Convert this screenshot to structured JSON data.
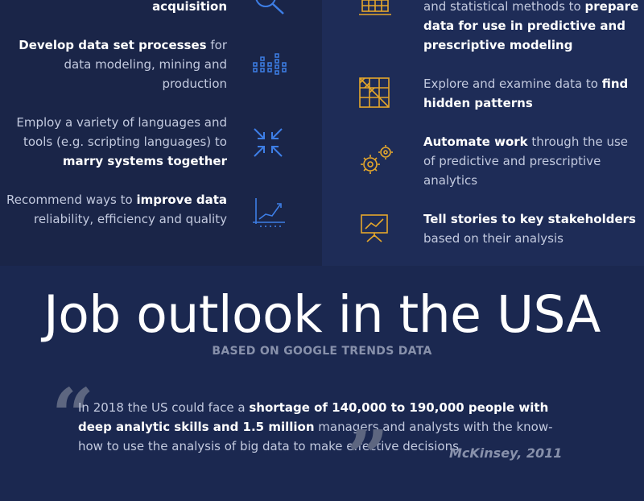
{
  "left_duties": [
    {
      "pre": "",
      "bold": "acquisition",
      "post": ""
    },
    {
      "pre": "",
      "bold": "Develop data set processes",
      "post": " for data modeling, mining and production"
    },
    {
      "pre": "Employ a variety of languages and tools (e.g. scripting languages) to ",
      "bold": "marry systems together",
      "post": ""
    },
    {
      "pre": "Recommend ways to ",
      "bold": "improve data",
      "post": " reliability, efficiency and quality"
    }
  ],
  "right_duties": [
    {
      "pre": "and statistical methods to ",
      "bold": "prepare data for use in predictive and prescriptive modeling",
      "post": ""
    },
    {
      "pre": "Explore and examine data to ",
      "bold": "find hidden patterns",
      "post": ""
    },
    {
      "pre": "",
      "bold": "Automate work",
      "post": " through the use of predictive and prescriptive analytics"
    },
    {
      "pre": "",
      "bold": "Tell stories to key stakeholders",
      "post": " based on their analysis"
    }
  ],
  "icons": {
    "left": [
      "magnifier-icon",
      "bar-dots-icon",
      "arrows-inward-icon",
      "trend-chart-icon"
    ],
    "right": [
      "grid-chart-icon",
      "grid-diagonal-icon",
      "gears-icon",
      "presentation-board-icon"
    ],
    "colors": {
      "left": "#3d7ee6",
      "right": "#e5a72b"
    }
  },
  "outlook": {
    "title": "Job outlook in the USA",
    "subtitle": "BASED ON GOOGLE TRENDS DATA",
    "quote_open_mark": "“",
    "quote_close_mark": "”",
    "quote_pre": "In 2018 the US could face a ",
    "quote_bold": "shortage of 140,000 to 190,000 people with deep analytic skills and 1.5 million",
    "quote_post": "  managers and analysts with the know-how to use the analysis of big data to make effective decisions.",
    "citation": "McKinsey, 2011"
  }
}
